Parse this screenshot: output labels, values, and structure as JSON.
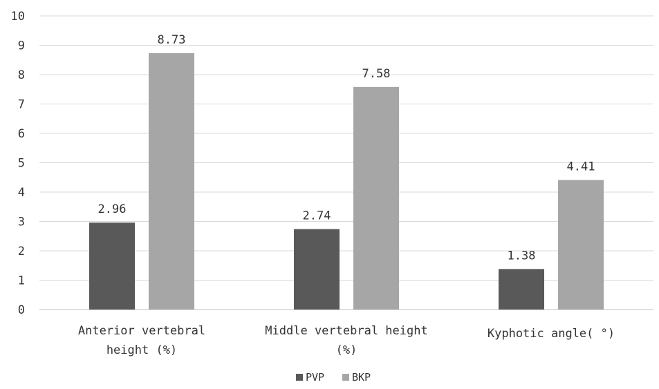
{
  "chart_data": {
    "type": "bar",
    "categories": [
      [
        "Anterior vertebral",
        "height (%)"
      ],
      [
        "Middle vertebral height",
        "(%)"
      ],
      [
        "Kyphotic angle( °)"
      ]
    ],
    "series": [
      {
        "name": "PVP",
        "color": "#595959",
        "values": [
          2.96,
          2.74,
          1.38
        ],
        "labels": [
          "2.96",
          "2.74",
          "1.38"
        ]
      },
      {
        "name": "BKP",
        "color": "#a6a6a6",
        "values": [
          8.73,
          7.58,
          4.41
        ],
        "labels": [
          "8.73",
          "7.58",
          "4.41"
        ]
      }
    ],
    "ylim": [
      0,
      10
    ],
    "yticks": [
      "0",
      "1",
      "2",
      "3",
      "4",
      "5",
      "6",
      "7",
      "8",
      "9",
      "10"
    ],
    "grid": true,
    "legend_position": "bottom-center"
  }
}
